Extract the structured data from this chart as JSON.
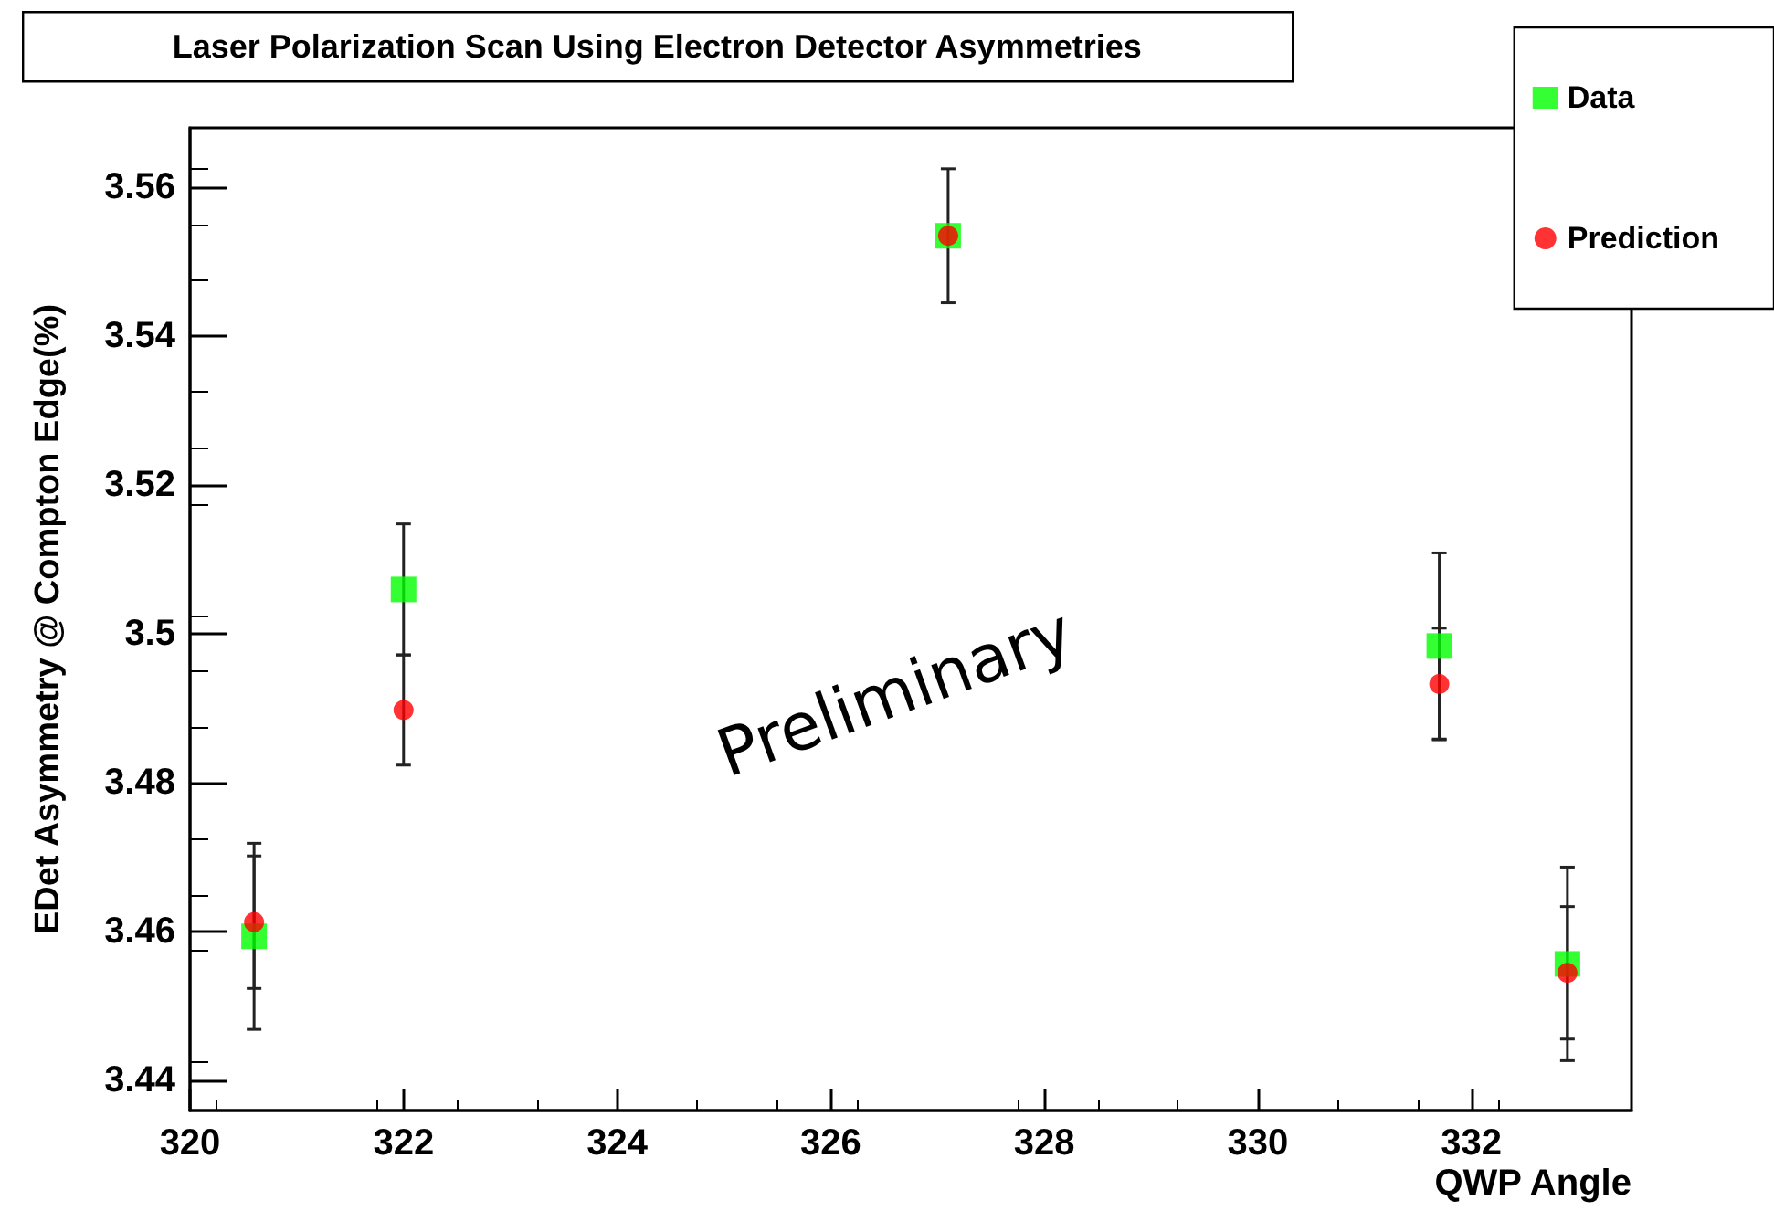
{
  "chart_data": {
    "type": "scatter",
    "title": "Laser Polarization Scan Using Electron Detector Asymmetries",
    "xlabel": "QWP Angle",
    "ylabel": "EDet Asymmetry @ Compton Edge(%)",
    "x": [
      320.6,
      322.0,
      327.1,
      331.7,
      332.9
    ],
    "series": [
      {
        "name": "Data",
        "color": "#00ff00",
        "marker": "square",
        "values": [
          3.4594,
          3.506,
          3.5535,
          3.4984,
          3.4557
        ],
        "errors": [
          0.0125,
          0.0088,
          0.009,
          0.0125,
          0.013
        ]
      },
      {
        "name": "Prediction",
        "color": "#ff0000",
        "marker": "circle",
        "values": [
          3.4613,
          3.4898,
          3.5535,
          3.4933,
          3.4545
        ],
        "errors": [
          0.0089,
          0.0074,
          null,
          0.0075,
          0.0089
        ]
      }
    ],
    "xlim": [
      320,
      333.5
    ],
    "xticks": [
      320,
      322,
      324,
      326,
      328,
      330,
      332
    ],
    "ylim": [
      3.436,
      3.568
    ],
    "yticks": [
      3.44,
      3.46,
      3.48,
      3.5,
      3.52,
      3.54,
      3.56
    ],
    "legend": "top right",
    "grid": false,
    "annotations": [
      "Preliminary"
    ]
  }
}
